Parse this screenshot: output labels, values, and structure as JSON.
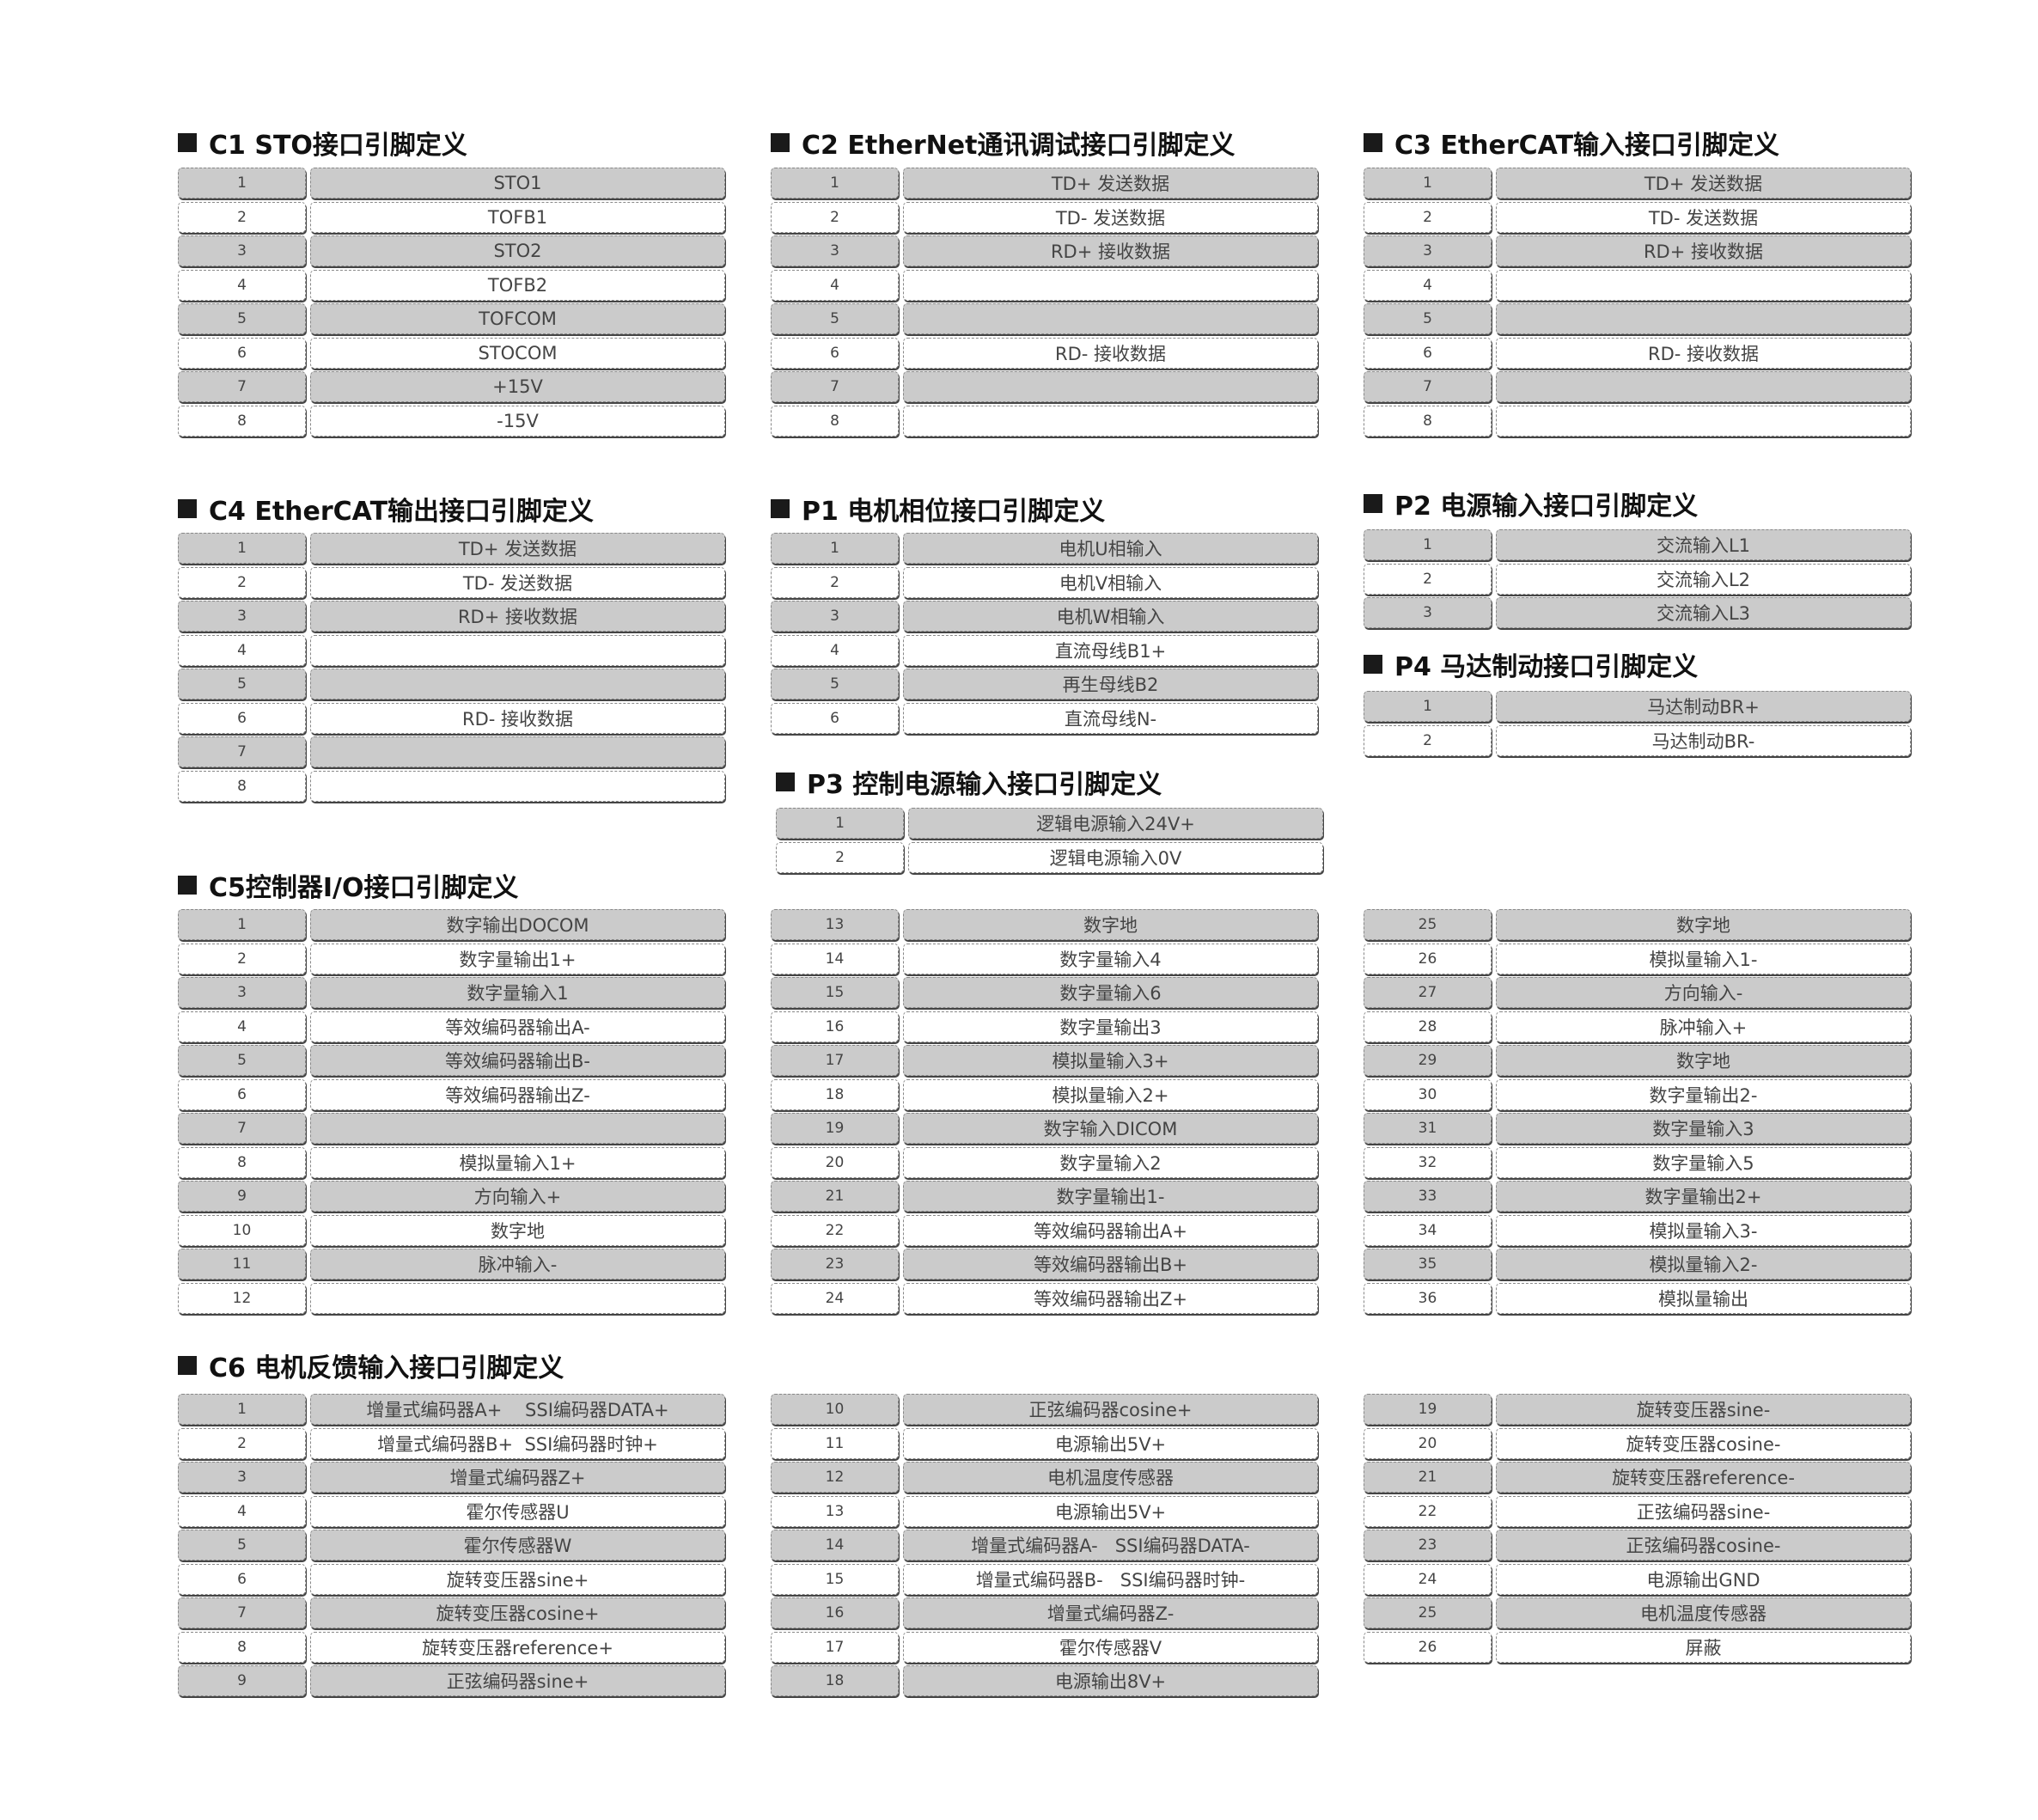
{
  "colors": {
    "odd_row": "#cbcbcb",
    "even_row": "#ffffff",
    "heading": "#111111"
  },
  "sections": [
    {
      "id": "c1",
      "title": "C1  STO接口引脚定义",
      "rows": [
        [
          "1",
          "STO1"
        ],
        [
          "2",
          "TOFB1"
        ],
        [
          "3",
          "STO2"
        ],
        [
          "4",
          "TOFB2"
        ],
        [
          "5",
          "TOFCOM"
        ],
        [
          "6",
          "STOCOM"
        ],
        [
          "7",
          "+15V"
        ],
        [
          "8",
          "-15V"
        ]
      ]
    },
    {
      "id": "c2",
      "title": "C2 EtherNet通讯调试接口引脚定义",
      "rows": [
        [
          "1",
          "TD+ 发送数据"
        ],
        [
          "2",
          "TD- 发送数据"
        ],
        [
          "3",
          "RD+ 接收数据"
        ],
        [
          "4",
          ""
        ],
        [
          "5",
          ""
        ],
        [
          "6",
          "RD- 接收数据"
        ],
        [
          "7",
          ""
        ],
        [
          "8",
          ""
        ]
      ]
    },
    {
      "id": "c3",
      "title": "C3 EtherCAT输入接口引脚定义",
      "rows": [
        [
          "1",
          "TD+ 发送数据"
        ],
        [
          "2",
          "TD- 发送数据"
        ],
        [
          "3",
          "RD+ 接收数据"
        ],
        [
          "4",
          ""
        ],
        [
          "5",
          ""
        ],
        [
          "6",
          "RD- 接收数据"
        ],
        [
          "7",
          ""
        ],
        [
          "8",
          ""
        ]
      ]
    },
    {
      "id": "c4",
      "title": "C4 EtherCAT输出接口引脚定义",
      "rows": [
        [
          "1",
          "TD+ 发送数据"
        ],
        [
          "2",
          "TD- 发送数据"
        ],
        [
          "3",
          "RD+ 接收数据"
        ],
        [
          "4",
          ""
        ],
        [
          "5",
          ""
        ],
        [
          "6",
          "RD- 接收数据"
        ],
        [
          "7",
          ""
        ],
        [
          "8",
          ""
        ]
      ]
    },
    {
      "id": "p1",
      "title": "P1  电机相位接口引脚定义",
      "rows": [
        [
          "1",
          "电机U相输入"
        ],
        [
          "2",
          "电机V相输入"
        ],
        [
          "3",
          "电机W相输入"
        ],
        [
          "4",
          "直流母线B1+"
        ],
        [
          "5",
          "再生母线B2"
        ],
        [
          "6",
          "直流母线N-"
        ]
      ]
    },
    {
      "id": "p2",
      "title": "P2  电源输入接口引脚定义",
      "rows": [
        [
          "1",
          "交流输入L1"
        ],
        [
          "2",
          "交流输入L2"
        ],
        [
          "3",
          "交流输入L3"
        ]
      ]
    },
    {
      "id": "p4",
      "title": "P4  马达制动接口引脚定义",
      "rows": [
        [
          "1",
          "马达制动BR+"
        ],
        [
          "2",
          "马达制动BR-"
        ]
      ]
    },
    {
      "id": "p3",
      "title": "P3  控制电源输入接口引脚定义",
      "rows": [
        [
          "1",
          "逻辑电源输入24V+"
        ],
        [
          "2",
          "逻辑电源输入0V"
        ]
      ]
    },
    {
      "id": "c5a",
      "title": "C5控制器I/O接口引脚定义",
      "rows": [
        [
          "1",
          "数字输出DOCOM"
        ],
        [
          "2",
          "数字量输出1+"
        ],
        [
          "3",
          "数字量输入1"
        ],
        [
          "4",
          "等效编码器输出A-"
        ],
        [
          "5",
          "等效编码器输出B-"
        ],
        [
          "6",
          "等效编码器输出Z-"
        ],
        [
          "7",
          ""
        ],
        [
          "8",
          "模拟量输入1+"
        ],
        [
          "9",
          "方向输入+"
        ],
        [
          "10",
          "数字地"
        ],
        [
          "11",
          "脉冲输入-"
        ],
        [
          "12",
          ""
        ]
      ]
    },
    {
      "id": "c5b",
      "title": "",
      "rows": [
        [
          "13",
          "数字地"
        ],
        [
          "14",
          "数字量输入4"
        ],
        [
          "15",
          "数字量输入6"
        ],
        [
          "16",
          "数字量输出3"
        ],
        [
          "17",
          "模拟量输入3+"
        ],
        [
          "18",
          "模拟量输入2+"
        ],
        [
          "19",
          "数字输入DICOM"
        ],
        [
          "20",
          "数字量输入2"
        ],
        [
          "21",
          "数字量输出1-"
        ],
        [
          "22",
          "等效编码器输出A+"
        ],
        [
          "23",
          "等效编码器输出B+"
        ],
        [
          "24",
          "等效编码器输出Z+"
        ]
      ]
    },
    {
      "id": "c5c",
      "title": "",
      "rows": [
        [
          "25",
          "数字地"
        ],
        [
          "26",
          "模拟量输入1-"
        ],
        [
          "27",
          "方向输入-"
        ],
        [
          "28",
          "脉冲输入+"
        ],
        [
          "29",
          "数字地"
        ],
        [
          "30",
          "数字量输出2-"
        ],
        [
          "31",
          "数字量输入3"
        ],
        [
          "32",
          "数字量输入5"
        ],
        [
          "33",
          "数字量输出2+"
        ],
        [
          "34",
          "模拟量输入3-"
        ],
        [
          "35",
          "模拟量输入2-"
        ],
        [
          "36",
          "模拟量输出"
        ]
      ]
    },
    {
      "id": "c6a",
      "title": "C6 电机反馈输入接口引脚定义",
      "rows": [
        [
          "1",
          "增量式编码器A+    SSI编码器DATA+"
        ],
        [
          "2",
          "增量式编码器B+  SSI编码器时钟+"
        ],
        [
          "3",
          "增量式编码器Z+"
        ],
        [
          "4",
          "霍尔传感器U"
        ],
        [
          "5",
          "霍尔传感器W"
        ],
        [
          "6",
          "旋转变压器sine+"
        ],
        [
          "7",
          "旋转变压器cosine+"
        ],
        [
          "8",
          "旋转变压器reference+"
        ],
        [
          "9",
          "正弦编码器sine+"
        ]
      ]
    },
    {
      "id": "c6b",
      "title": "",
      "rows": [
        [
          "10",
          "正弦编码器cosine+"
        ],
        [
          "11",
          "电源输出5V+"
        ],
        [
          "12",
          "电机温度传感器"
        ],
        [
          "13",
          "电源输出5V+"
        ],
        [
          "14",
          "增量式编码器A-   SSI编码器DATA-"
        ],
        [
          "15",
          "增量式编码器B-   SSI编码器时钟-"
        ],
        [
          "16",
          "增量式编码器Z-"
        ],
        [
          "17",
          "霍尔传感器V"
        ],
        [
          "18",
          "电源输出8V+"
        ]
      ]
    },
    {
      "id": "c6c",
      "title": "",
      "rows": [
        [
          "19",
          "旋转变压器sine-"
        ],
        [
          "20",
          "旋转变压器cosine-"
        ],
        [
          "21",
          "旋转变压器reference-"
        ],
        [
          "22",
          "正弦编码器sine-"
        ],
        [
          "23",
          "正弦编码器cosine-"
        ],
        [
          "24",
          "电源输出GND"
        ],
        [
          "25",
          "电机温度传感器"
        ],
        [
          "26",
          "屏蔽"
        ]
      ]
    }
  ]
}
